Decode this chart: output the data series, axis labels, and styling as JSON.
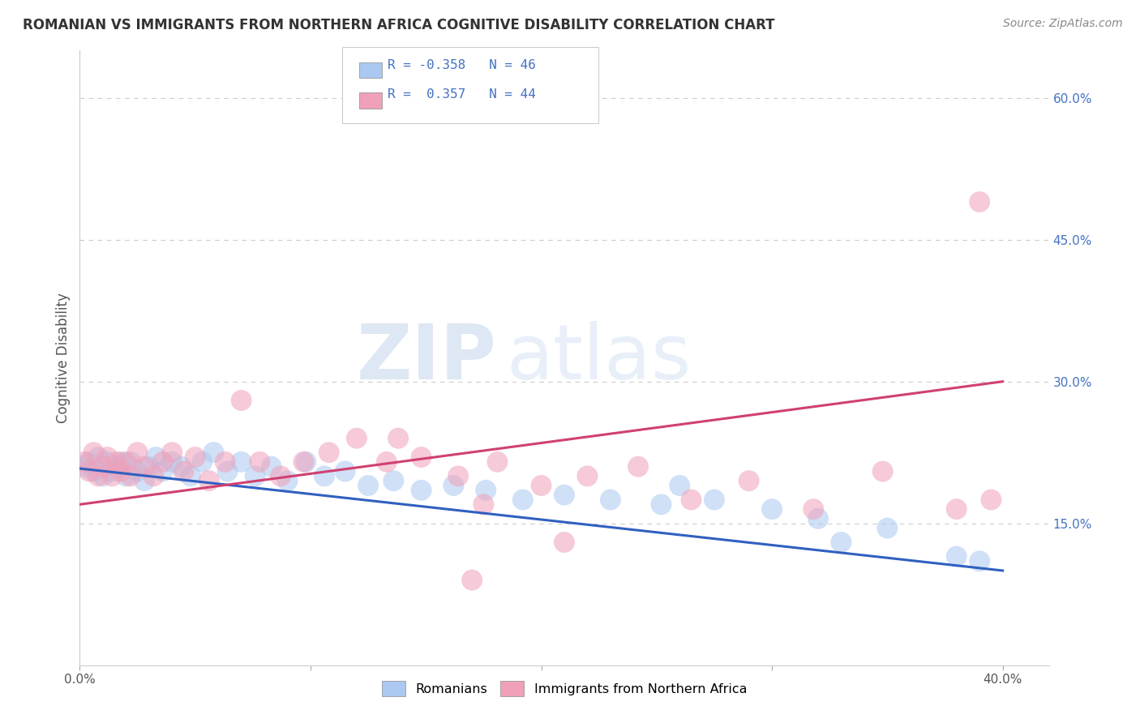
{
  "title": "ROMANIAN VS IMMIGRANTS FROM NORTHERN AFRICA COGNITIVE DISABILITY CORRELATION CHART",
  "source": "Source: ZipAtlas.com",
  "ylabel": "Cognitive Disability",
  "xlim": [
    0.0,
    0.42
  ],
  "ylim": [
    0.0,
    0.65
  ],
  "x_ticks": [
    0.0,
    0.4
  ],
  "x_tick_labels": [
    "0.0%",
    "40.0%"
  ],
  "y_ticks_right": [
    0.15,
    0.3,
    0.45,
    0.6
  ],
  "y_tick_labels_right": [
    "15.0%",
    "30.0%",
    "45.0%",
    "60.0%"
  ],
  "blue_color": "#aac8f0",
  "pink_color": "#f0a0b8",
  "line_blue": "#3060c0",
  "line_pink": "#d04070",
  "title_color": "#333333",
  "source_color": "#888888",
  "background_color": "#ffffff",
  "grid_color": "#cccccc",
  "blue_scatter_x": [
    0.002,
    0.004,
    0.006,
    0.008,
    0.01,
    0.012,
    0.014,
    0.016,
    0.018,
    0.02,
    0.022,
    0.025,
    0.028,
    0.03,
    0.033,
    0.036,
    0.04,
    0.044,
    0.048,
    0.053,
    0.058,
    0.064,
    0.07,
    0.076,
    0.083,
    0.09,
    0.098,
    0.106,
    0.115,
    0.125,
    0.136,
    0.148,
    0.162,
    0.176,
    0.192,
    0.21,
    0.23,
    0.252,
    0.275,
    0.3,
    0.26,
    0.32,
    0.35,
    0.33,
    0.38,
    0.39
  ],
  "blue_scatter_y": [
    0.21,
    0.215,
    0.205,
    0.22,
    0.2,
    0.215,
    0.205,
    0.21,
    0.215,
    0.2,
    0.215,
    0.205,
    0.195,
    0.21,
    0.22,
    0.205,
    0.215,
    0.21,
    0.2,
    0.215,
    0.225,
    0.205,
    0.215,
    0.2,
    0.21,
    0.195,
    0.215,
    0.2,
    0.205,
    0.19,
    0.195,
    0.185,
    0.19,
    0.185,
    0.175,
    0.18,
    0.175,
    0.17,
    0.175,
    0.165,
    0.19,
    0.155,
    0.145,
    0.13,
    0.115,
    0.11
  ],
  "pink_scatter_x": [
    0.002,
    0.004,
    0.006,
    0.008,
    0.01,
    0.012,
    0.014,
    0.016,
    0.018,
    0.02,
    0.022,
    0.025,
    0.028,
    0.032,
    0.036,
    0.04,
    0.045,
    0.05,
    0.056,
    0.063,
    0.07,
    0.078,
    0.087,
    0.097,
    0.108,
    0.12,
    0.133,
    0.148,
    0.164,
    0.181,
    0.2,
    0.22,
    0.242,
    0.265,
    0.29,
    0.318,
    0.348,
    0.38,
    0.395,
    0.138,
    0.175,
    0.21,
    0.17,
    0.39
  ],
  "pink_scatter_y": [
    0.215,
    0.205,
    0.225,
    0.2,
    0.21,
    0.22,
    0.2,
    0.215,
    0.205,
    0.215,
    0.2,
    0.225,
    0.21,
    0.2,
    0.215,
    0.225,
    0.205,
    0.22,
    0.195,
    0.215,
    0.28,
    0.215,
    0.2,
    0.215,
    0.225,
    0.24,
    0.215,
    0.22,
    0.2,
    0.215,
    0.19,
    0.2,
    0.21,
    0.175,
    0.195,
    0.165,
    0.205,
    0.165,
    0.175,
    0.24,
    0.17,
    0.13,
    0.09,
    0.49
  ],
  "blue_line_x": [
    0.0,
    0.4
  ],
  "blue_line_y": [
    0.208,
    0.1
  ],
  "pink_line_x": [
    0.0,
    0.4
  ],
  "pink_line_y": [
    0.17,
    0.3
  ]
}
